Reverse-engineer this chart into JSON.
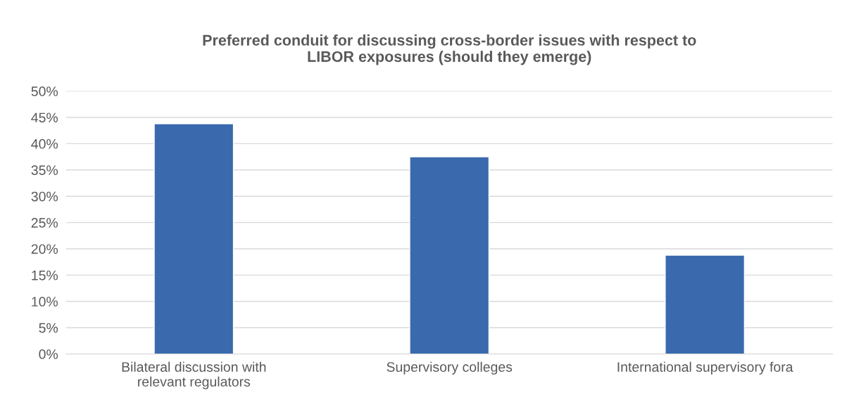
{
  "chart_data": {
    "type": "bar",
    "title": "Preferred conduit for discussing cross-border issues with respect to\nLIBOR exposures (should they emerge)",
    "categories": [
      "Bilateral discussion with\nrelevant regulators",
      "Supervisory colleges",
      "International supervisory fora"
    ],
    "values": [
      43.8,
      37.5,
      18.8
    ],
    "color": "#3a6aad",
    "ylim": [
      0,
      50
    ],
    "yticks": [
      {
        "value": 0,
        "label": "0%"
      },
      {
        "value": 5,
        "label": "5%"
      },
      {
        "value": 10,
        "label": "10%"
      },
      {
        "value": 15,
        "label": "15%"
      },
      {
        "value": 20,
        "label": "20%"
      },
      {
        "value": 25,
        "label": "25%"
      },
      {
        "value": 30,
        "label": "30%"
      },
      {
        "value": 35,
        "label": "35%"
      },
      {
        "value": 40,
        "label": "40%"
      },
      {
        "value": 45,
        "label": "45%"
      },
      {
        "value": 50,
        "label": "50%"
      }
    ],
    "grid": "y"
  }
}
